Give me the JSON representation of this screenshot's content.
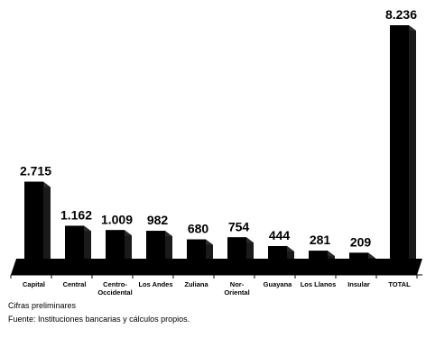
{
  "chart_data": {
    "type": "bar",
    "categories": [
      "Capital",
      "Central",
      "Centro-Occidental",
      "Los Andes",
      "Zuliana",
      "Nor-Oriental",
      "Guayana",
      "Los Llanos",
      "Insular",
      "TOTAL"
    ],
    "category_lines": [
      [
        "Capital"
      ],
      [
        "Central"
      ],
      [
        "Centro-",
        "Occidental"
      ],
      [
        "Los Andes"
      ],
      [
        "Zuliana"
      ],
      [
        "Nor-",
        "Oriental"
      ],
      [
        "Guayana"
      ],
      [
        "Los Llanos"
      ],
      [
        "Insular"
      ],
      [
        "TOTAL"
      ]
    ],
    "values": [
      2715,
      1162,
      1009,
      982,
      680,
      754,
      444,
      281,
      209,
      8236
    ],
    "value_labels": [
      "2.715",
      "1.162",
      "1.009",
      "982",
      "680",
      "754",
      "444",
      "281",
      "209",
      "8.236"
    ],
    "ylim": [
      0,
      8236
    ],
    "grid": false,
    "legend": "none",
    "bar_color": "#000000"
  },
  "notes": {
    "line1": "Cifras preliminares",
    "line2": "Fuente: Instituciones bancarias y cálculos propios."
  }
}
